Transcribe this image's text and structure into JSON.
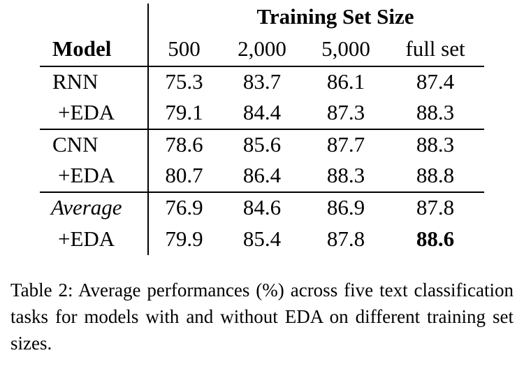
{
  "table": {
    "group_header": "Training Set Size",
    "model_header": "Model",
    "columns": [
      "500",
      "2,000",
      "5,000",
      "full set"
    ],
    "rows": [
      {
        "label": "RNN",
        "values": [
          "75.3",
          "83.7",
          "86.1",
          "87.4"
        ]
      },
      {
        "label": "+EDA",
        "values": [
          "79.1",
          "84.4",
          "87.3",
          "88.3"
        ]
      },
      {
        "label": "CNN",
        "values": [
          "78.6",
          "85.6",
          "87.7",
          "88.3"
        ]
      },
      {
        "label": "+EDA",
        "values": [
          "80.7",
          "86.4",
          "88.3",
          "88.8"
        ]
      },
      {
        "label": "Average",
        "values": [
          "76.9",
          "84.6",
          "86.9",
          "87.8"
        ]
      },
      {
        "label": "+EDA",
        "values": [
          "79.9",
          "85.4",
          "87.8",
          "88.6"
        ]
      }
    ]
  },
  "caption": "Table 2: Average performances (%) across five text classification tasks for models with and without EDA on different training set sizes."
}
